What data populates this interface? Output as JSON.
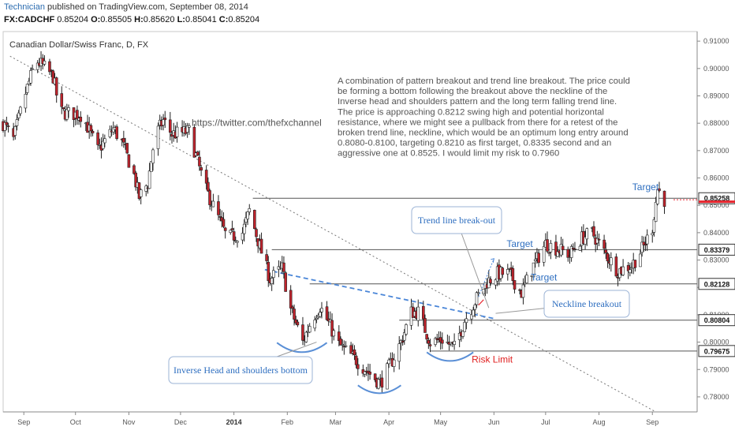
{
  "header": {
    "user": "Technician",
    "published": "published on TradingView.com, September 08, 2014",
    "symbol": "FX:CADCHF",
    "o_label": "O:",
    "o": "0.85505",
    "h_label": "H:",
    "h": "0.85620",
    "l_label": "L:",
    "l": "0.85041",
    "c_label": "C:",
    "c": "0.85204",
    "last": "0.85204"
  },
  "chart_data": {
    "type": "candlestick",
    "title": "Canadian Dollar/Swiss Franc, D, FX",
    "ylim": [
      0.7745,
      0.9135
    ],
    "y_ticks": [
      "0.78000",
      "0.79000",
      "0.80000",
      "0.81000",
      "0.82000",
      "0.83000",
      "0.84000",
      "0.85000",
      "0.86000",
      "0.87000",
      "0.88000",
      "0.89000",
      "0.90000",
      "0.91000"
    ],
    "x_ticks": [
      {
        "label": "Sep",
        "date": "2013-09-01"
      },
      {
        "label": "Oct",
        "date": "2013-10-01"
      },
      {
        "label": "Nov",
        "date": "2013-11-01"
      },
      {
        "label": "Dec",
        "date": "2013-12-01"
      },
      {
        "label": "2014",
        "date": "2014-01-01",
        "bold": true
      },
      {
        "label": "Feb",
        "date": "2014-02-01"
      },
      {
        "label": "Mar",
        "date": "2014-03-01"
      },
      {
        "label": "Apr",
        "date": "2014-04-01"
      },
      {
        "label": "May",
        "date": "2014-05-01"
      },
      {
        "label": "Jun",
        "date": "2014-06-01"
      },
      {
        "label": "Jul",
        "date": "2014-07-01"
      },
      {
        "label": "Aug",
        "date": "2014-08-01"
      },
      {
        "label": "Sep",
        "date": "2014-09-01"
      }
    ],
    "x_range": [
      "2013-08-20",
      "2014-09-27"
    ],
    "price_path": [
      [
        "2013-08-20",
        0.88
      ],
      [
        "2013-08-26",
        0.874
      ],
      [
        "2013-09-01",
        0.889
      ],
      [
        "2013-09-08",
        0.903
      ],
      [
        "2013-09-12",
        0.901
      ],
      [
        "2013-09-18",
        0.897
      ],
      [
        "2013-09-22",
        0.884
      ],
      [
        "2013-10-05",
        0.883
      ],
      [
        "2013-10-14",
        0.87
      ],
      [
        "2013-10-23",
        0.878
      ],
      [
        "2013-10-28",
        0.873
      ],
      [
        "2013-11-04",
        0.861
      ],
      [
        "2013-11-07",
        0.853
      ],
      [
        "2013-11-12",
        0.858
      ],
      [
        "2013-11-16",
        0.875
      ],
      [
        "2013-11-21",
        0.881
      ],
      [
        "2013-11-26",
        0.876
      ],
      [
        "2013-12-06",
        0.877
      ],
      [
        "2013-12-15",
        0.857
      ],
      [
        "2013-12-24",
        0.844
      ],
      [
        "2013-12-28",
        0.838
      ],
      [
        "2014-01-06",
        0.84
      ],
      [
        "2014-01-10",
        0.848
      ],
      [
        "2014-01-16",
        0.835
      ],
      [
        "2014-01-22",
        0.823
      ],
      [
        "2014-01-29",
        0.827
      ],
      [
        "2014-02-03",
        0.812
      ],
      [
        "2014-02-10",
        0.8
      ],
      [
        "2014-02-15",
        0.808
      ],
      [
        "2014-02-20",
        0.813
      ],
      [
        "2014-02-25",
        0.807
      ],
      [
        "2014-03-03",
        0.799
      ],
      [
        "2014-03-12",
        0.794
      ],
      [
        "2014-03-20",
        0.789
      ],
      [
        "2014-03-27",
        0.785
      ],
      [
        "2014-04-02",
        0.792
      ],
      [
        "2014-04-08",
        0.8
      ],
      [
        "2014-04-14",
        0.811
      ],
      [
        "2014-04-18",
        0.811
      ],
      [
        "2014-04-25",
        0.8
      ],
      [
        "2014-05-02",
        0.801
      ],
      [
        "2014-05-09",
        0.798
      ],
      [
        "2014-05-15",
        0.808
      ],
      [
        "2014-05-22",
        0.816
      ],
      [
        "2014-05-28",
        0.822
      ],
      [
        "2014-06-03",
        0.825
      ],
      [
        "2014-06-10",
        0.825
      ],
      [
        "2014-06-17",
        0.818
      ],
      [
        "2014-06-24",
        0.828
      ],
      [
        "2014-07-01",
        0.836
      ],
      [
        "2014-07-08",
        0.834
      ],
      [
        "2014-07-15",
        0.832
      ],
      [
        "2014-07-22",
        0.838
      ],
      [
        "2014-07-28",
        0.84
      ],
      [
        "2014-08-04",
        0.833
      ],
      [
        "2014-08-12",
        0.826
      ],
      [
        "2014-08-20",
        0.828
      ],
      [
        "2014-08-27",
        0.835
      ],
      [
        "2014-09-01",
        0.842
      ],
      [
        "2014-09-04",
        0.856
      ],
      [
        "2014-09-08",
        0.852
      ]
    ],
    "level_labels": [
      {
        "value": 0.85258,
        "text": "0.85258"
      },
      {
        "value": 0.83379,
        "text": "0.83379"
      },
      {
        "value": 0.82128,
        "text": "0.82128"
      },
      {
        "value": 0.80804,
        "text": "0.80804"
      },
      {
        "value": 0.79675,
        "text": "0.79675"
      }
    ],
    "current_price": 0.85204,
    "text_labels": {
      "target_top": "Target",
      "target_mid1": "Target",
      "target_mid2": "Target",
      "risk": "Risk Limit",
      "url": "https://twitter.com/thefxchannel"
    },
    "callouts": {
      "trendline": "Trend line break-out",
      "neckline": "Neckline breakout",
      "inverse": "Inverse Head and shoulders bottom"
    },
    "annotation_lines": [
      "A combination of pattern breakout and trend line breakout. The price could",
      "be forming a bottom following the breakout above the neckline of the",
      "Inverse head and shoulders pattern and the long term falling trend line.",
      "The price is approaching 0.8212 swing high and potential horizontal",
      "resistance, where we might see a pullback from there for a retest of the",
      "broken trend line, neckline, which would be an optimum long entry around",
      "0.8080-0.8100, targeting 0.8210 as first target, 0.8335 second and an",
      "aggressive one at 0.8525. I would limit my risk to 0.7960"
    ]
  },
  "colors": {
    "up": "#ffffff",
    "down": "#c0232c",
    "wick": "#222222",
    "current_price": "#e8252e",
    "trend_dashed": "#4a86d8",
    "callout_text": "#2f6fc0",
    "risk": "#e02020"
  }
}
